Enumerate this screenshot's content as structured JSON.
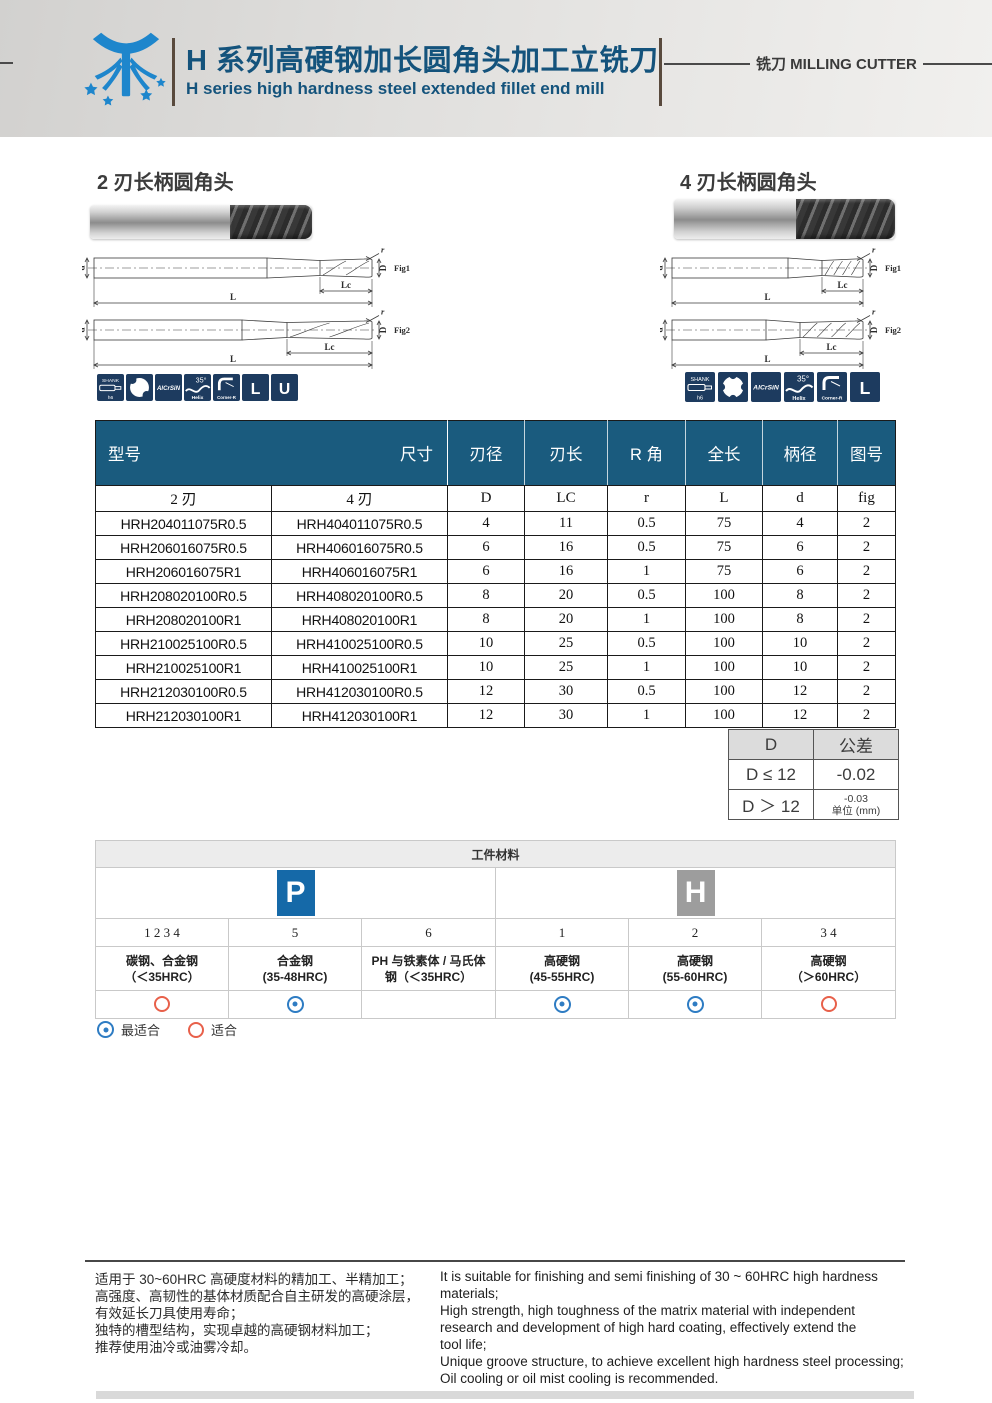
{
  "header": {
    "title_cn": "H 系列高硬钢加长圆角头加工立铣刀",
    "title_en": "H series high hardness steel extended fillet end mill",
    "category_label": "铣刀 MILLING CUTTER",
    "accent_color": "#14537c"
  },
  "sections": {
    "left": {
      "title": "2 刃长柄圆角头",
      "icons": [
        {
          "type": "shank",
          "line1": "SHANK",
          "line2": "h6"
        },
        {
          "type": "flutes",
          "label": "2"
        },
        {
          "type": "coating",
          "label": "AlCrSiN"
        },
        {
          "type": "helix",
          "deg": "35°",
          "label": "Helix"
        },
        {
          "type": "corner-r",
          "label": "Corner-R"
        },
        {
          "type": "letter",
          "label": "L"
        },
        {
          "type": "letter",
          "label": "U"
        }
      ]
    },
    "right": {
      "title": "4 刃长柄圆角头",
      "icons": [
        {
          "type": "shank",
          "line1": "SHANK",
          "line2": "h6"
        },
        {
          "type": "flutes",
          "label": "4"
        },
        {
          "type": "coating",
          "label": "AlCrSiN"
        },
        {
          "type": "helix",
          "deg": "35°",
          "label": "Helix"
        },
        {
          "type": "corner-r",
          "label": "Corner-R"
        },
        {
          "type": "letter",
          "label": "L"
        }
      ]
    }
  },
  "diagram": {
    "d": "d",
    "L": "L",
    "Lc": "Lc",
    "D": "D",
    "r": "r",
    "fig1": "Fig1",
    "fig2": "Fig2"
  },
  "main_table": {
    "header_bg": "#1a5b7e",
    "corner": {
      "model": "型号",
      "size": "尺寸"
    },
    "headers": [
      "刃径",
      "刃长",
      "R 角",
      "全长",
      "柄径",
      "图号"
    ],
    "subheaders": [
      "2 刃",
      "4 刃",
      "D",
      "LC",
      "r",
      "L",
      "d",
      "fig"
    ],
    "rows": [
      [
        "HRH204011075R0.5",
        "HRH404011075R0.5",
        "4",
        "11",
        "0.5",
        "75",
        "4",
        "2"
      ],
      [
        "HRH206016075R0.5",
        "HRH406016075R0.5",
        "6",
        "16",
        "0.5",
        "75",
        "6",
        "2"
      ],
      [
        "HRH206016075R1",
        "HRH406016075R1",
        "6",
        "16",
        "1",
        "75",
        "6",
        "2"
      ],
      [
        "HRH208020100R0.5",
        "HRH408020100R0.5",
        "8",
        "20",
        "0.5",
        "100",
        "8",
        "2"
      ],
      [
        "HRH208020100R1",
        "HRH408020100R1",
        "8",
        "20",
        "1",
        "100",
        "8",
        "2"
      ],
      [
        "HRH210025100R0.5",
        "HRH410025100R0.5",
        "10",
        "25",
        "0.5",
        "100",
        "10",
        "2"
      ],
      [
        "HRH210025100R1",
        "HRH410025100R1",
        "10",
        "25",
        "1",
        "100",
        "10",
        "2"
      ],
      [
        "HRH212030100R0.5",
        "HRH412030100R0.5",
        "12",
        "30",
        "0.5",
        "100",
        "12",
        "2"
      ],
      [
        "HRH212030100R1",
        "HRH412030100R1",
        "12",
        "30",
        "1",
        "100",
        "12",
        "2"
      ]
    ]
  },
  "tolerance_table": {
    "col1_header": "D",
    "col2_header": "公差",
    "row1_label": "D ≤ 12",
    "row1_value": "-0.02",
    "row2_label": "D ＞ 12",
    "row2_value": "-0.03",
    "unit_note": "单位 (mm)"
  },
  "material_table": {
    "title": "工件材料",
    "badges": [
      {
        "label": "P",
        "color": "#1569a8"
      },
      {
        "label": "H",
        "color": "#9d9d9d"
      }
    ],
    "columns": [
      {
        "nums": "1 2 3 4",
        "name_line1": "碳钢、合金钢",
        "name_line2": "（＜35HRC）",
        "mark": "fit"
      },
      {
        "nums": "5",
        "name_line1": "合金钢",
        "name_line2": "(35-48HRC)",
        "mark": "best"
      },
      {
        "nums": "6",
        "name_line1": "PH 与铁素体 / 马氏体",
        "name_line2": "钢（＜35HRC）",
        "mark": "none"
      },
      {
        "nums": "1",
        "name_line1": "高硬钢",
        "name_line2": "(45-55HRC)",
        "mark": "best"
      },
      {
        "nums": "2",
        "name_line1": "高硬钢",
        "name_line2": "(55-60HRC)",
        "mark": "best"
      },
      {
        "nums": "3 4",
        "name_line1": "高硬钢",
        "name_line2": "（＞60HRC）",
        "mark": "fit"
      }
    ]
  },
  "legend": {
    "best_label": "最适合",
    "fit_label": "适合",
    "best_color": "#2e7cc3",
    "fit_color": "#e8604a"
  },
  "notes": {
    "cn_lines": [
      "适用于 30~60HRC 高硬度材料的精加工、半精加工；",
      "高强度、高韧性的基体材质配合自主研发的高硬涂层，",
      "有效延长刀具使用寿命；",
      "独特的槽型结构，实现卓越的高硬钢材料加工；",
      "推荐使用油冷或油雾冷却。"
    ],
    "en_lines": [
      "It is suitable for finishing and semi finishing of 30 ~ 60HRC high hardness",
      "materials;",
      "High strength, high toughness of the matrix material with independent",
      "research and development of high hard coating, effectively extend the",
      "tool life;",
      "Unique groove structure, to achieve excellent high hardness steel processing;",
      "Oil cooling or oil mist cooling is recommended."
    ]
  }
}
